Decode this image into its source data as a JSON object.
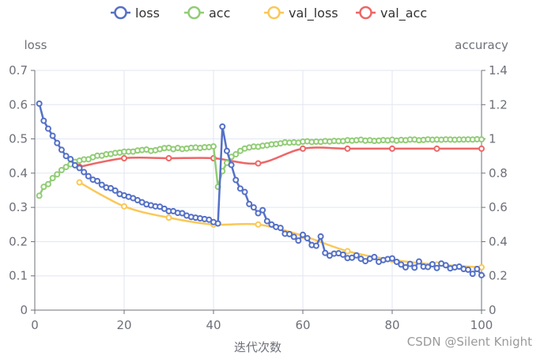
{
  "chart_data": {
    "type": "line",
    "legend": [
      "loss",
      "acc",
      "val_loss",
      "val_acc"
    ],
    "legend_position": "top-center",
    "xlabel": "迭代次数",
    "ylabel_left": "loss",
    "ylabel_right": "accuracy",
    "xlim": [
      0,
      100
    ],
    "ylim_left": [
      0,
      0.7
    ],
    "ylim_right": [
      0,
      1.4
    ],
    "x_ticks": [
      "0",
      "20",
      "40",
      "60",
      "80",
      "100"
    ],
    "y_left_ticks": [
      "0",
      "0.1",
      "0.2",
      "0.3",
      "0.4",
      "0.5",
      "0.6",
      "0.7"
    ],
    "y_right_ticks": [
      "0",
      "0.2",
      "0.4",
      "0.6",
      "0.8",
      "1",
      "1.2",
      "1.4"
    ],
    "grid": true,
    "colors": {
      "loss": "#5470c6",
      "acc": "#91cc75",
      "val_loss": "#fac858",
      "val_acc": "#ee6666"
    },
    "series": [
      {
        "name": "loss",
        "axis": "left",
        "smooth": false,
        "x_start": 1,
        "x_step": 1,
        "values": [
          0.603,
          0.553,
          0.53,
          0.509,
          0.488,
          0.468,
          0.45,
          0.441,
          0.423,
          0.415,
          0.403,
          0.391,
          0.381,
          0.377,
          0.366,
          0.358,
          0.356,
          0.349,
          0.339,
          0.335,
          0.331,
          0.327,
          0.321,
          0.315,
          0.309,
          0.306,
          0.303,
          0.302,
          0.296,
          0.289,
          0.289,
          0.284,
          0.283,
          0.276,
          0.272,
          0.27,
          0.268,
          0.266,
          0.264,
          0.257,
          0.253,
          0.536,
          0.465,
          0.424,
          0.38,
          0.355,
          0.345,
          0.31,
          0.3,
          0.283,
          0.292,
          0.26,
          0.25,
          0.243,
          0.24,
          0.223,
          0.222,
          0.214,
          0.203,
          0.22,
          0.21,
          0.19,
          0.188,
          0.215,
          0.167,
          0.159,
          0.165,
          0.166,
          0.162,
          0.152,
          0.153,
          0.16,
          0.15,
          0.143,
          0.15,
          0.155,
          0.141,
          0.146,
          0.149,
          0.151,
          0.141,
          0.133,
          0.125,
          0.135,
          0.124,
          0.142,
          0.127,
          0.126,
          0.134,
          0.123,
          0.136,
          0.131,
          0.122,
          0.125,
          0.127,
          0.12,
          0.118,
          0.106,
          0.12,
          0.102
        ]
      },
      {
        "name": "acc",
        "axis": "right",
        "smooth": false,
        "x_start": 1,
        "x_step": 1,
        "values": [
          0.668,
          0.72,
          0.736,
          0.771,
          0.793,
          0.818,
          0.836,
          0.852,
          0.866,
          0.873,
          0.88,
          0.881,
          0.893,
          0.902,
          0.902,
          0.91,
          0.912,
          0.918,
          0.92,
          0.925,
          0.926,
          0.926,
          0.932,
          0.935,
          0.938,
          0.93,
          0.934,
          0.94,
          0.946,
          0.948,
          0.94,
          0.947,
          0.941,
          0.944,
          0.948,
          0.95,
          0.947,
          0.951,
          0.952,
          0.956,
          0.72,
          0.812,
          0.86,
          0.895,
          0.91,
          0.93,
          0.944,
          0.95,
          0.955,
          0.954,
          0.96,
          0.963,
          0.968,
          0.97,
          0.974,
          0.98,
          0.978,
          0.98,
          0.978,
          0.984,
          0.986,
          0.982,
          0.984,
          0.983,
          0.987,
          0.985,
          0.988,
          0.987,
          0.987,
          0.992,
          0.99,
          0.992,
          0.995,
          0.99,
          0.992,
          0.988,
          0.99,
          0.993,
          0.991,
          0.995,
          0.99,
          0.994,
          0.992,
          0.996,
          0.996,
          0.992,
          0.994,
          0.997,
          0.995,
          0.996,
          0.995,
          0.997,
          0.996,
          0.995,
          0.996,
          0.996,
          0.997,
          0.996,
          0.998,
          0.997
        ]
      },
      {
        "name": "val_loss",
        "axis": "left",
        "smooth": true,
        "x": [
          10,
          20,
          30,
          40,
          50,
          60,
          70,
          80,
          90,
          100
        ],
        "values": [
          0.373,
          0.303,
          0.27,
          0.25,
          0.25,
          0.217,
          0.172,
          0.147,
          0.133,
          0.125
        ]
      },
      {
        "name": "val_acc",
        "axis": "right",
        "smooth": true,
        "x": [
          10,
          20,
          30,
          40,
          50,
          60,
          70,
          80,
          90,
          100
        ],
        "values": [
          0.837,
          0.887,
          0.887,
          0.887,
          0.857,
          0.943,
          0.943,
          0.943,
          0.943,
          0.943
        ]
      }
    ]
  },
  "watermark": "CSDN @Silent Knight"
}
